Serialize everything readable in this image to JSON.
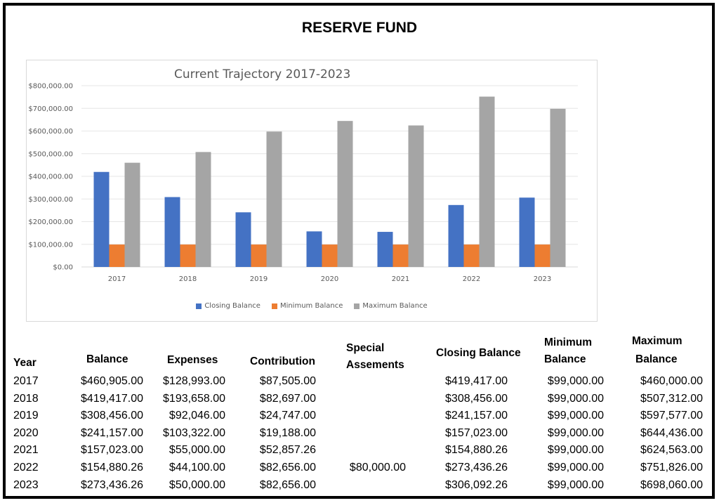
{
  "title": "RESERVE FUND",
  "chart_data": {
    "type": "bar",
    "title": "Current Trajectory 2017-2023",
    "categories": [
      "2017",
      "2018",
      "2019",
      "2020",
      "2021",
      "2022",
      "2023"
    ],
    "series": [
      {
        "name": "Closing Balance",
        "color": "#4472C4",
        "values": [
          419417.0,
          308456.0,
          241157.0,
          157023.0,
          154880.26,
          273436.26,
          306092.26
        ]
      },
      {
        "name": "Minimum Balance",
        "color": "#ED7D31",
        "values": [
          99000,
          99000,
          99000,
          99000,
          99000,
          99000,
          99000
        ]
      },
      {
        "name": "Maximum Balance",
        "color": "#A5A5A5",
        "values": [
          460000.0,
          507312.0,
          597577.0,
          644436.0,
          624563.0,
          751826.0,
          698060.0
        ]
      }
    ],
    "ylim": [
      0,
      800000
    ],
    "yticks": [
      "$0.00",
      "$100,000.00",
      "$200,000.00",
      "$300,000.00",
      "$400,000.00",
      "$500,000.00",
      "$600,000.00",
      "$700,000.00",
      "$800,000.00"
    ],
    "grid": true,
    "legend_position": "bottom"
  },
  "table": {
    "headers": {
      "year": "Year",
      "balance": "Balance",
      "expenses": "Expenses",
      "contribution": "Contribution",
      "special_1": "Special",
      "special_2": "Assements",
      "closing": "Closing Balance",
      "minimum_1": "Minimum",
      "minimum_2": "Balance",
      "maximum_1": "Maximum",
      "maximum_2": "Balance"
    },
    "rows": [
      {
        "year": "2017",
        "balance": "$460,905.00",
        "expenses": "$128,993.00",
        "contribution": "$87,505.00",
        "special": "",
        "closing": "$419,417.00",
        "minimum": "$99,000.00",
        "maximum": "$460,000.00"
      },
      {
        "year": "2018",
        "balance": "$419,417.00",
        "expenses": "$193,658.00",
        "contribution": "$82,697.00",
        "special": "",
        "closing": "$308,456.00",
        "minimum": "$99,000.00",
        "maximum": "$507,312.00"
      },
      {
        "year": "2019",
        "balance": "$308,456.00",
        "expenses": "$92,046.00",
        "contribution": "$24,747.00",
        "special": "",
        "closing": "$241,157.00",
        "minimum": "$99,000.00",
        "maximum": "$597,577.00"
      },
      {
        "year": "2020",
        "balance": "$241,157.00",
        "expenses": "$103,322.00",
        "contribution": "$19,188.00",
        "special": "",
        "closing": "$157,023.00",
        "minimum": "$99,000.00",
        "maximum": "$644,436.00"
      },
      {
        "year": "2021",
        "balance": "$157,023.00",
        "expenses": "$55,000.00",
        "contribution": "$52,857.26",
        "special": "",
        "closing": "$154,880.26",
        "minimum": "$99,000.00",
        "maximum": "$624,563.00"
      },
      {
        "year": "2022",
        "balance": "$154,880.26",
        "expenses": "$44,100.00",
        "contribution": "$82,656.00",
        "special": "$80,000.00",
        "closing": "$273,436.26",
        "minimum": "$99,000.00",
        "maximum": "$751,826.00"
      },
      {
        "year": "2023",
        "balance": "$273,436.26",
        "expenses": "$50,000.00",
        "contribution": "$82,656.00",
        "special": "",
        "closing": "$306,092.26",
        "minimum": "$99,000.00",
        "maximum": "$698,060.00"
      }
    ]
  }
}
